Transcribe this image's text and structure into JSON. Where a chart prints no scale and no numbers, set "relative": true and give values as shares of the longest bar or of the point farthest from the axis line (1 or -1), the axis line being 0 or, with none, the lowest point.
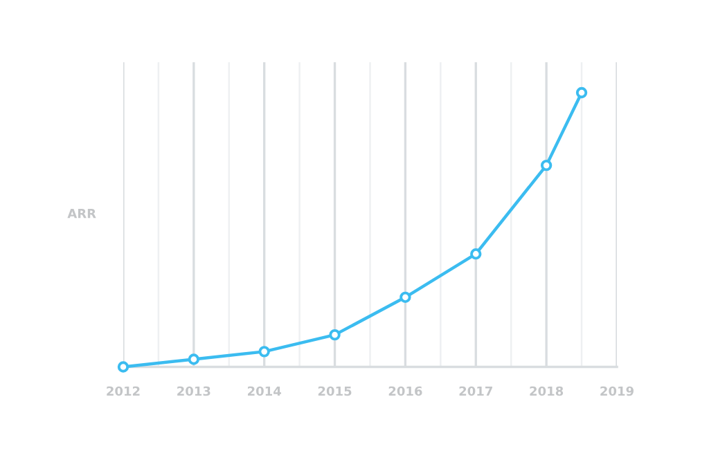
{
  "chart_data": {
    "type": "line",
    "ylabel": "ARR",
    "relative": true,
    "x": [
      2012,
      2013,
      2014,
      2015,
      2016,
      2017,
      2018,
      2018.5
    ],
    "series": [
      {
        "color": "#3bbcf0",
        "values": [
          0,
          0.028,
          0.056,
          0.117,
          0.254,
          0.412,
          0.735,
          1
        ]
      }
    ],
    "xlim": [
      2012,
      2019
    ],
    "xticks": [
      2012,
      {
        "value": 2012.5,
        "label": null
      },
      2013,
      {
        "value": 2013.5,
        "label": null
      },
      2014,
      {
        "value": 2014.5,
        "label": null
      },
      2015,
      {
        "value": 2015.5,
        "label": null
      },
      2016,
      {
        "value": 2016.5,
        "label": null
      },
      2017,
      {
        "value": 2017.5,
        "label": null
      },
      2018,
      {
        "value": 2018.5,
        "label": null
      },
      2019
    ],
    "grid": "x",
    "marker": "circle",
    "line_style": "solid"
  }
}
